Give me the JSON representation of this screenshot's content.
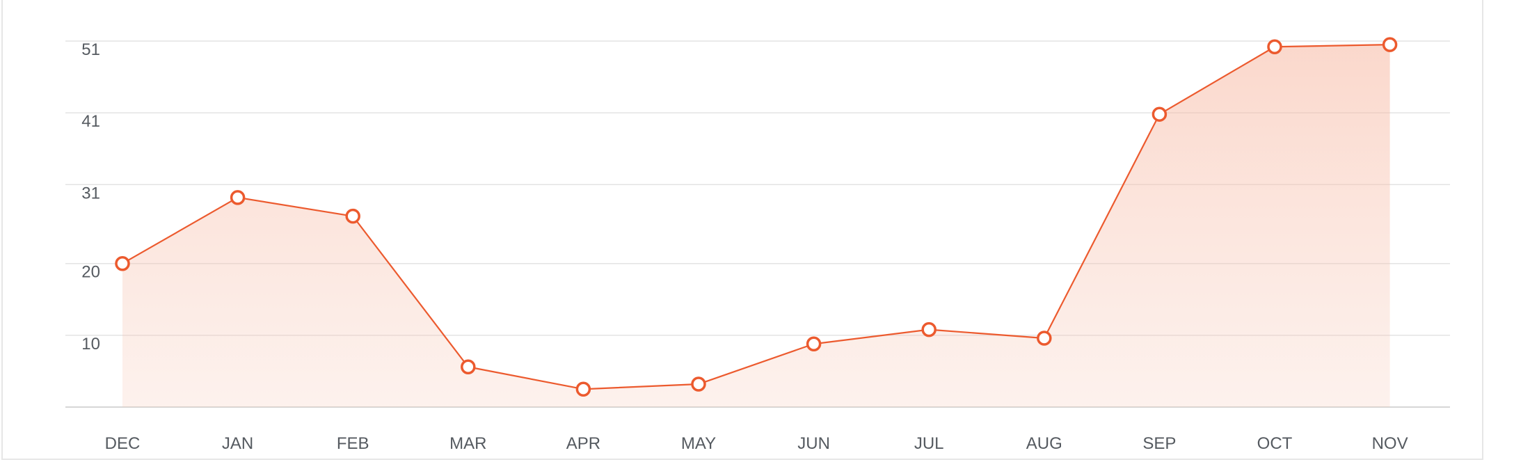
{
  "chart_data": {
    "type": "area",
    "categories": [
      "DEC",
      "JAN",
      "FEB",
      "MAR",
      "APR",
      "MAY",
      "JUN",
      "JUL",
      "AUG",
      "SEP",
      "OCT",
      "NOV"
    ],
    "series": [
      {
        "values": [
          20,
          29.2,
          26.6,
          5.6,
          2.5,
          3.2,
          8.8,
          10.8,
          9.6,
          40.8,
          50.2,
          50.5
        ]
      }
    ],
    "y_ticks": [
      "51",
      "41",
      "31",
      "20",
      "10"
    ],
    "ylim": [
      0,
      51
    ],
    "grid": true,
    "legend": "none",
    "title": "",
    "xlabel": "",
    "ylabel": ""
  },
  "colors": {
    "line": "#ec5a2e",
    "fill": "#f7c1ae",
    "grid": "#e3e3e3",
    "axis": "#d6d6d6",
    "label": "#555a60"
  }
}
